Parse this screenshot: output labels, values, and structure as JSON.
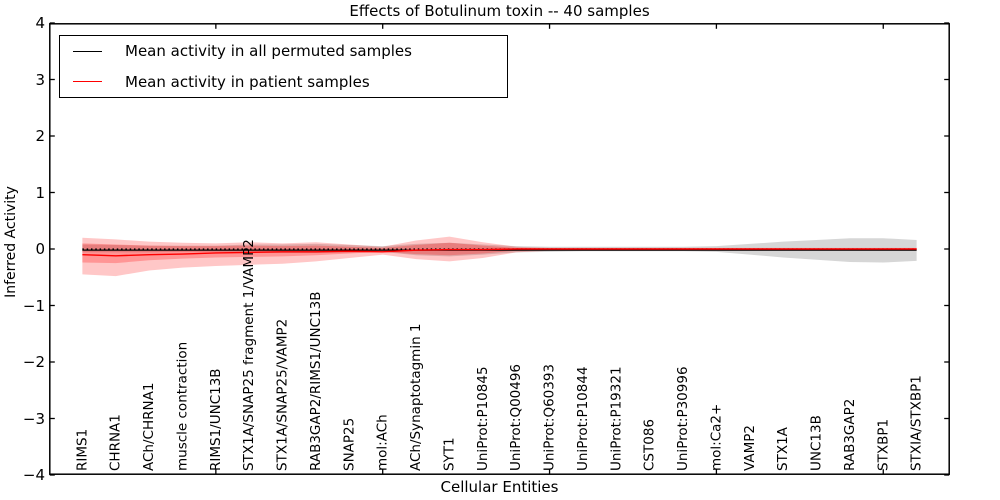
{
  "chart_data": {
    "type": "line",
    "title": "Effects of Botulinum toxin -- 40 samples",
    "xlabel": "Cellular Entities",
    "ylabel": "Inferred Activity",
    "ylim": [
      -4,
      4
    ],
    "xlim_index": [
      -1,
      26
    ],
    "y_ticks": [
      4,
      3,
      2,
      1,
      0,
      -1,
      -2,
      -3,
      -4
    ],
    "x_major_tick_indices": [
      4,
      9,
      14,
      19,
      24
    ],
    "grid": false,
    "legend_position": "upper left",
    "categories": [
      "RIMS1",
      "CHRNA1",
      "ACh/CHRNA1",
      "muscle contraction",
      "RIMS1/UNC13B",
      "STX1A/SNAP25 fragment 1/VAMP2",
      "STX1A/SNAP25/VAMP2",
      "RAB3GAP2/RIMS1/UNC13B",
      "SNAP25",
      "mol:ACh",
      "ACh/Synaptotagmin 1",
      "SYT1",
      "UniProt:P10845",
      "UniProt:Q00496",
      "UniProt:Q60393",
      "UniProt:P10844",
      "UniProt:P19321",
      "CST086",
      "UniProt:P30996",
      "mol:Ca2+",
      "VAMP2",
      "STX1A",
      "UNC13B",
      "RAB3GAP2",
      "STXBP1",
      "STXIA/STXBP1"
    ],
    "series": [
      {
        "name": "Mean activity in all permuted samples",
        "color": "#000000",
        "width": 1.2,
        "values": [
          -0.02,
          -0.02,
          -0.02,
          -0.02,
          -0.02,
          -0.02,
          -0.02,
          -0.02,
          -0.02,
          -0.02,
          -0.02,
          -0.02,
          -0.02,
          -0.02,
          -0.02,
          -0.02,
          -0.02,
          -0.02,
          -0.02,
          -0.02,
          -0.02,
          -0.02,
          -0.02,
          -0.02,
          -0.02,
          -0.02
        ]
      },
      {
        "name": "Mean activity in patient samples",
        "color": "#ff0000",
        "width": 1.4,
        "values": [
          -0.1,
          -0.12,
          -0.1,
          -0.09,
          -0.07,
          -0.06,
          -0.05,
          -0.05,
          -0.04,
          -0.05,
          -0.02,
          -0.01,
          -0.01,
          0,
          0,
          0,
          0,
          0,
          0,
          0,
          0,
          0,
          0,
          0,
          0,
          0
        ]
      }
    ],
    "bands": [
      {
        "name": "permuted-std",
        "color": "rgba(120,120,120,0.30)",
        "top": [
          0.08,
          0.07,
          0.06,
          0.06,
          0.06,
          0.08,
          0.08,
          0.09,
          0.07,
          0.05,
          0.09,
          0.11,
          0.08,
          0.05,
          0.04,
          0.04,
          0.04,
          0.04,
          0.04,
          0.05,
          0.09,
          0.13,
          0.16,
          0.19,
          0.19,
          0.16
        ],
        "bottom": [
          -0.06,
          -0.06,
          -0.06,
          -0.05,
          -0.05,
          -0.06,
          -0.07,
          -0.07,
          -0.06,
          -0.05,
          -0.11,
          -0.13,
          -0.1,
          -0.06,
          -0.05,
          -0.04,
          -0.04,
          -0.04,
          -0.04,
          -0.05,
          -0.1,
          -0.15,
          -0.19,
          -0.23,
          -0.24,
          -0.21
        ]
      },
      {
        "name": "patient-std-outer",
        "color": "rgba(255,0,0,0.22)",
        "top": [
          0.2,
          0.17,
          0.13,
          0.11,
          0.1,
          0.12,
          0.1,
          0.12,
          0.08,
          0.04,
          0.15,
          0.22,
          0.12,
          0.04,
          0.02,
          0.02,
          0.02,
          0.02,
          0.02,
          0.02,
          0.02,
          0.02,
          0.02,
          0.02,
          0.02,
          0.02
        ],
        "bottom": [
          -0.45,
          -0.48,
          -0.38,
          -0.33,
          -0.3,
          -0.28,
          -0.26,
          -0.22,
          -0.16,
          -0.1,
          -0.18,
          -0.22,
          -0.16,
          -0.06,
          -0.03,
          -0.03,
          -0.03,
          -0.03,
          -0.03,
          -0.03,
          -0.03,
          -0.03,
          -0.03,
          -0.03,
          -0.03,
          -0.03
        ]
      },
      {
        "name": "patient-std-inner",
        "color": "rgba(255,0,0,0.25)",
        "top": [
          0.1,
          0.08,
          0.06,
          0.05,
          0.05,
          0.06,
          0.05,
          0.06,
          0.04,
          0.02,
          0.07,
          0.11,
          0.06,
          0.02,
          0.01,
          0.01,
          0.01,
          0.01,
          0.01,
          0.01,
          0.01,
          0.01,
          0.01,
          0.01,
          0.01,
          0.01
        ],
        "bottom": [
          -0.24,
          -0.25,
          -0.2,
          -0.17,
          -0.15,
          -0.14,
          -0.13,
          -0.11,
          -0.08,
          -0.05,
          -0.09,
          -0.11,
          -0.08,
          -0.03,
          -0.02,
          -0.02,
          -0.02,
          -0.02,
          -0.02,
          -0.02,
          -0.02,
          -0.02,
          -0.02,
          -0.02,
          -0.02,
          -0.02
        ]
      }
    ],
    "zero_line": {
      "style": "dotted",
      "color": "#000000",
      "y": 0
    }
  },
  "legend": {
    "items": [
      {
        "label": "Mean activity in all permuted samples",
        "color": "#000000"
      },
      {
        "label": "Mean activity in patient samples",
        "color": "#ff0000"
      }
    ]
  }
}
